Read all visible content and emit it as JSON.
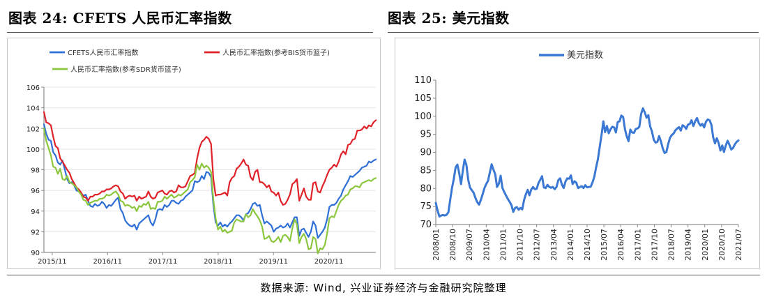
{
  "header": {
    "left_title": "图表 24:  CFETS 人民币汇率指数",
    "right_title": "图表 25:  美元指数"
  },
  "source_note": "数据来源:  Wind,  兴业证券经济与金融研究院整理",
  "colors": {
    "blue": "#2f6fd6",
    "red": "#e0222a",
    "green": "#8cc63f",
    "usd": "#3a78d4"
  },
  "chart_data": [
    {
      "type": "line",
      "title": "",
      "xlabel": "",
      "ylabel": "",
      "ylim": [
        90,
        106
      ],
      "yticks": [
        "106",
        "104",
        "102",
        "100",
        "98",
        "96",
        "94",
        "92",
        "90"
      ],
      "xtick_labels": [
        "2015/11",
        "2016/11",
        "2017/11",
        "2018/11",
        "2019/11",
        "2020/11"
      ],
      "grid": true,
      "legend": "top",
      "series": [
        {
          "name": "CFETS人民币汇率指数",
          "color": "blue",
          "values": [
            102.4,
            101.5,
            100.9,
            100.8,
            99.7,
            99.4,
            98.7,
            98.5,
            98.9,
            98.0,
            97.1,
            96.7,
            96.8,
            96.5,
            96.0,
            95.9,
            95.7,
            95.5,
            95.6,
            95.0,
            94.5,
            94.4,
            94.7,
            94.5,
            94.6,
            94.9,
            94.7,
            94.3,
            94.6,
            94.5,
            94.8,
            95.1,
            95.3,
            94.2,
            93.8,
            93.1,
            92.8,
            92.6,
            92.5,
            92.7,
            92.2,
            92.8,
            93.0,
            93.2,
            93.4,
            93.6,
            92.9,
            92.6,
            93.2,
            94.1,
            94.2,
            94.1,
            94.6,
            94.4,
            94.6,
            95.0,
            95.0,
            94.8,
            94.7,
            95.0,
            95.1,
            95.4,
            95.6,
            95.8,
            96.0,
            96.9,
            96.8,
            96.9,
            97.4,
            97.1,
            97.8,
            97.7,
            97.3,
            94.6,
            92.9,
            92.6,
            92.9,
            92.5,
            92.7,
            92.5,
            92.8,
            93.0,
            93.3,
            93.6,
            93.6,
            93.4,
            93.1,
            93.7,
            93.8,
            94.2,
            94.7,
            94.8,
            94.5,
            94.6,
            93.6,
            92.8,
            93.0,
            92.8,
            92.6,
            92.0,
            92.3,
            92.4,
            92.6,
            92.4,
            92.5,
            92.8,
            92.4,
            92.9,
            93.4,
            93.4,
            91.6,
            92.2,
            92.3,
            91.9,
            91.5,
            92.0,
            93.0,
            92.6,
            91.4,
            91.7,
            92.0,
            92.4,
            93.2,
            94.4,
            94.6,
            94.6,
            94.8,
            95.2,
            95.5,
            96.1,
            96.5,
            96.9,
            97.4,
            97.3,
            97.5,
            97.7,
            97.9,
            98.2,
            98.3,
            98.4,
            98.8,
            98.7,
            98.9,
            99.0
          ]
        },
        {
          "name": "人民币汇率指数(参考BIS货币篮子)",
          "color": "red",
          "values": [
            103.6,
            102.6,
            102.5,
            102.3,
            101.2,
            100.3,
            100.1,
            99.1,
            98.8,
            98.4,
            98.0,
            97.7,
            97.1,
            96.7,
            96.3,
            96.1,
            95.8,
            95.4,
            95.3,
            95.0,
            95.4,
            95.4,
            95.6,
            95.6,
            95.7,
            95.9,
            95.9,
            96.1,
            96.1,
            96.2,
            96.4,
            96.5,
            96.4,
            95.9,
            95.7,
            95.2,
            95.4,
            95.5,
            95.4,
            95.5,
            95.0,
            95.4,
            95.2,
            95.3,
            95.4,
            95.9,
            95.4,
            95.2,
            95.3,
            95.8,
            95.9,
            96.0,
            95.7,
            95.6,
            95.9,
            96.0,
            95.8,
            95.9,
            96.5,
            96.3,
            96.3,
            96.4,
            96.9,
            97.4,
            97.5,
            97.7,
            99.1,
            100.1,
            100.7,
            100.9,
            101.2,
            101.0,
            100.5,
            97.1,
            95.5,
            95.6,
            95.6,
            95.7,
            95.8,
            95.5,
            96.8,
            97.2,
            97.4,
            98.1,
            98.3,
            98.6,
            99.0,
            98.5,
            98.4,
            97.3,
            97.0,
            97.8,
            98.0,
            96.8,
            96.8,
            96.6,
            96.3,
            96.5,
            95.9,
            95.8,
            95.5,
            95.8,
            95.0,
            94.6,
            94.7,
            95.1,
            95.6,
            96.6,
            96.8,
            97.1,
            95.0,
            95.6,
            96.2,
            95.4,
            95.1,
            95.1,
            96.7,
            96.8,
            95.9,
            95.8,
            96.4,
            96.9,
            97.5,
            98.0,
            98.2,
            98.5,
            98.3,
            98.8,
            99.5,
            99.8,
            99.5,
            100.4,
            100.5,
            100.9,
            101.0,
            101.8,
            101.8,
            101.9,
            102.2,
            102.0,
            102.3,
            102.2,
            102.6,
            102.8
          ]
        },
        {
          "name": "人民币汇率指数(参考SDR货币篮子)",
          "color": "green",
          "values": [
            102.0,
            100.8,
            100.1,
            99.4,
            98.3,
            98.2,
            97.6,
            98.1,
            97.1,
            97.0,
            97.4,
            96.8,
            96.7,
            96.5,
            96.3,
            95.9,
            95.6,
            95.1,
            95.0,
            94.6,
            94.8,
            94.9,
            95.0,
            95.0,
            95.2,
            95.2,
            95.3,
            95.6,
            95.5,
            95.6,
            95.8,
            95.9,
            95.6,
            95.0,
            94.9,
            94.5,
            94.6,
            94.5,
            94.3,
            94.4,
            94.0,
            94.5,
            94.4,
            94.7,
            94.6,
            94.9,
            94.2,
            94.3,
            94.2,
            94.9,
            94.9,
            95.0,
            95.4,
            95.2,
            95.4,
            95.6,
            95.3,
            95.4,
            95.6,
            95.5,
            95.7,
            95.9,
            96.1,
            96.8,
            97.0,
            97.3,
            98.5,
            98.0,
            98.6,
            98.2,
            98.4,
            98.2,
            97.8,
            95.1,
            93.3,
            92.2,
            92.5,
            92.0,
            92.2,
            91.9,
            92.0,
            92.1,
            92.9,
            93.2,
            93.1,
            93.0,
            93.0,
            93.7,
            93.4,
            93.6,
            94.2,
            93.8,
            93.5,
            93.1,
            92.5,
            91.3,
            91.4,
            91.6,
            91.1,
            91.0,
            91.2,
            91.5,
            91.0,
            91.6,
            91.7,
            91.5,
            91.1,
            92.3,
            93.2,
            92.7,
            90.9,
            91.5,
            91.8,
            91.3,
            90.3,
            90.4,
            91.5,
            91.3,
            89.9,
            90.4,
            90.3,
            90.7,
            91.8,
            93.3,
            93.5,
            93.4,
            94.0,
            94.6,
            95.0,
            95.2,
            95.5,
            95.6,
            96.1,
            96.2,
            96.4,
            96.4,
            96.3,
            96.7,
            96.8,
            96.9,
            97.0,
            96.9,
            97.1,
            97.2
          ]
        }
      ]
    },
    {
      "type": "line",
      "title": "",
      "xlabel": "",
      "ylabel": "",
      "ylim": [
        70,
        110
      ],
      "yticks": [
        "110",
        "105",
        "100",
        "95",
        "90",
        "85",
        "80",
        "75",
        "70"
      ],
      "xtick_labels": [
        "2008/01",
        "2008/10",
        "2009/07",
        "2010/04",
        "2011/01",
        "2011/10",
        "2012/07",
        "2013/04",
        "2014/01",
        "2014/10",
        "2015/07",
        "2016/04",
        "2017/01",
        "2017/10",
        "2018/07",
        "2019/04",
        "2020/01",
        "2020/10",
        "2021/07"
      ],
      "grid": false,
      "legend": "top-left",
      "series": [
        {
          "name": "美元指数",
          "color": "usd",
          "values": [
            76.0,
            73.8,
            72.2,
            72.5,
            72.6,
            72.5,
            72.7,
            73.4,
            76.9,
            80.2,
            82.6,
            85.8,
            86.6,
            84.2,
            81.2,
            85.0,
            88.0,
            86.5,
            82.4,
            80.2,
            79.5,
            78.8,
            77.4,
            76.2,
            75.5,
            76.8,
            78.4,
            80.1,
            81.2,
            82.1,
            84.4,
            86.7,
            85.2,
            83.9,
            80.4,
            81.3,
            83.5,
            80.1,
            79.0,
            78.0,
            77.1,
            76.3,
            75.4,
            73.5,
            74.6,
            74.8,
            74.1,
            74.6,
            74.2,
            76.8,
            78.4,
            79.6,
            78.1,
            79.7,
            80.4,
            79.8,
            79.9,
            81.5,
            82.4,
            83.4,
            80.3,
            80.1,
            81.0,
            80.4,
            80.2,
            80.4,
            79.8,
            80.4,
            82.3,
            82.8,
            81.1,
            80.1,
            81.9,
            82.8,
            82.7,
            83.6,
            81.2,
            82.0,
            81.6,
            80.1,
            80.4,
            80.6,
            80.1,
            80.9,
            80.3,
            80.4,
            80.5,
            81.7,
            83.2,
            85.8,
            88.1,
            91.5,
            94.8,
            98.6,
            95.6,
            97.3,
            95.3,
            96.4,
            97.1,
            96.9,
            95.5,
            98.4,
            98.6,
            100.2,
            99.8,
            96.4,
            94.5,
            93.1,
            96.3,
            95.5,
            95.4,
            96.5,
            96.6,
            97.1,
            100.7,
            102.2,
            101.1,
            99.6,
            100.3,
            97.2,
            95.8,
            93.5,
            92.7,
            92.9,
            94.5,
            93.0,
            91.1,
            89.8,
            90.1,
            92.3,
            94.0,
            94.8,
            95.2,
            96.1,
            96.6,
            97.0,
            96.0,
            97.5,
            97.2,
            96.5,
            97.7,
            97.9,
            98.9,
            97.3,
            98.6,
            99.5,
            98.1,
            97.4,
            97.9,
            96.9,
            98.5,
            99.1,
            98.9,
            97.6,
            94.2,
            92.5,
            93.9,
            92.6,
            90.5,
            91.9,
            90.1,
            91.9,
            93.2,
            92.1,
            90.8,
            91.2,
            92.2,
            92.9,
            93.3
          ]
        }
      ]
    }
  ]
}
